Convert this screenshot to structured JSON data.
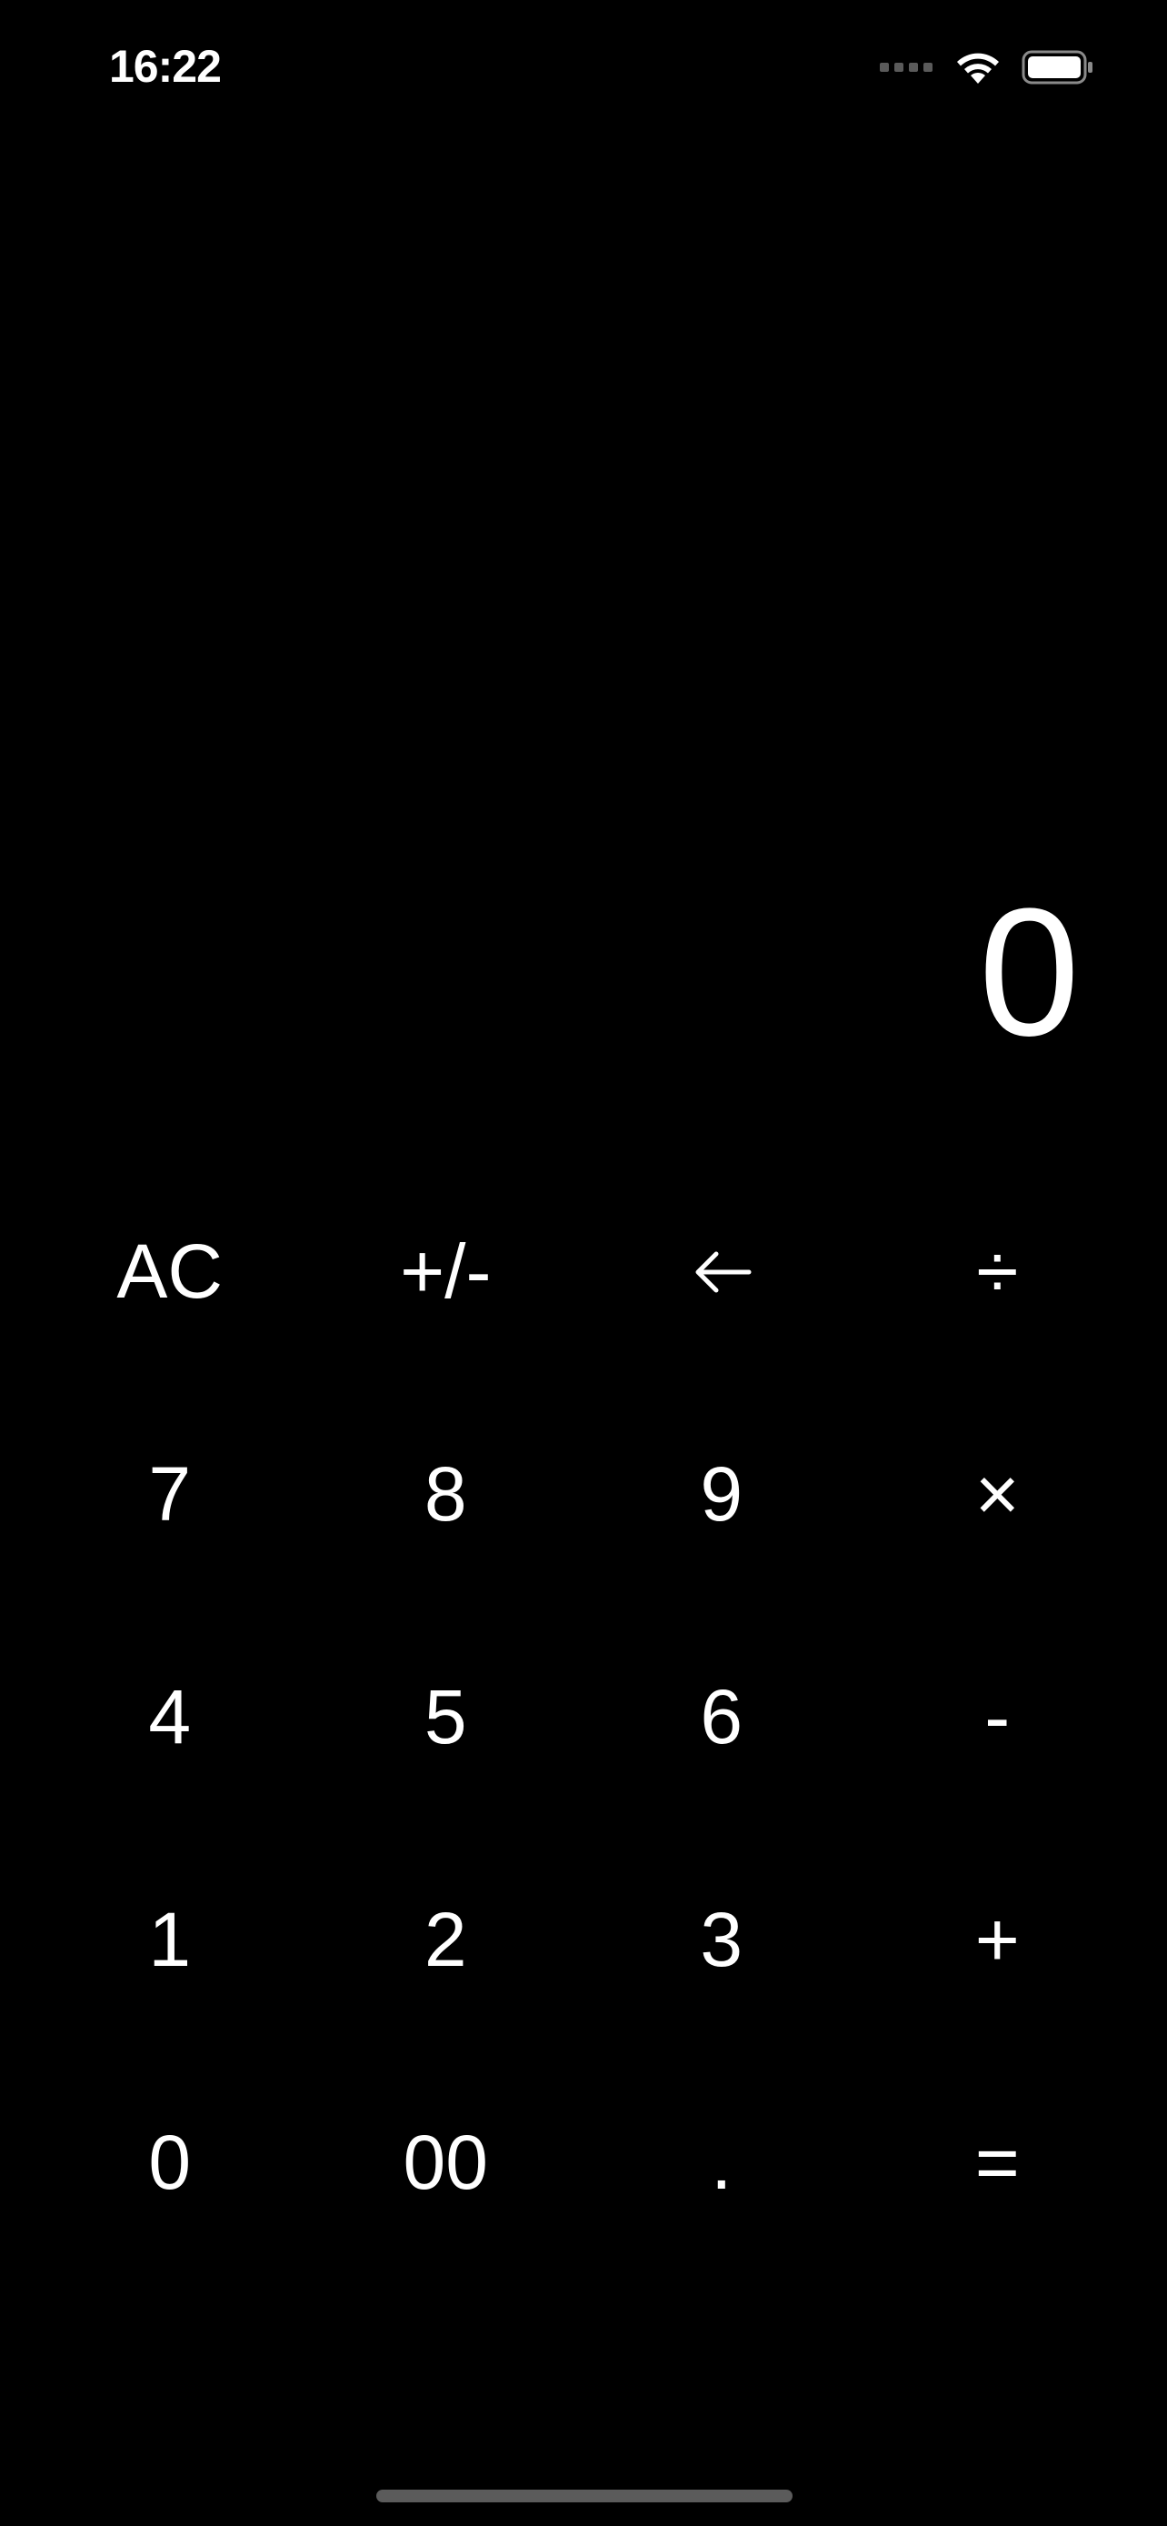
{
  "status_bar": {
    "time": "16:22",
    "icons": [
      "cellular-signal-icon",
      "wifi-icon",
      "battery-icon"
    ]
  },
  "display": {
    "value": "0"
  },
  "keypad": {
    "rows": [
      [
        {
          "name": "all-clear-button",
          "label": "AC"
        },
        {
          "name": "negate-button",
          "label": "+/-"
        },
        {
          "name": "backspace-button",
          "label": "",
          "icon": "left-arrow-icon"
        },
        {
          "name": "divide-button",
          "label": "÷"
        }
      ],
      [
        {
          "name": "digit-7-button",
          "label": "7"
        },
        {
          "name": "digit-8-button",
          "label": "8"
        },
        {
          "name": "digit-9-button",
          "label": "9"
        },
        {
          "name": "multiply-button",
          "label": "×"
        }
      ],
      [
        {
          "name": "digit-4-button",
          "label": "4"
        },
        {
          "name": "digit-5-button",
          "label": "5"
        },
        {
          "name": "digit-6-button",
          "label": "6"
        },
        {
          "name": "subtract-button",
          "label": "-"
        }
      ],
      [
        {
          "name": "digit-1-button",
          "label": "1"
        },
        {
          "name": "digit-2-button",
          "label": "2"
        },
        {
          "name": "digit-3-button",
          "label": "3"
        },
        {
          "name": "add-button",
          "label": "+"
        }
      ],
      [
        {
          "name": "digit-0-button",
          "label": "0"
        },
        {
          "name": "double-zero-button",
          "label": "00"
        },
        {
          "name": "decimal-point-button",
          "label": "."
        },
        {
          "name": "equals-button",
          "label": "="
        }
      ]
    ]
  },
  "colors": {
    "background": "#000000",
    "text": "#ffffff",
    "home_indicator": "#5b5b5b"
  }
}
